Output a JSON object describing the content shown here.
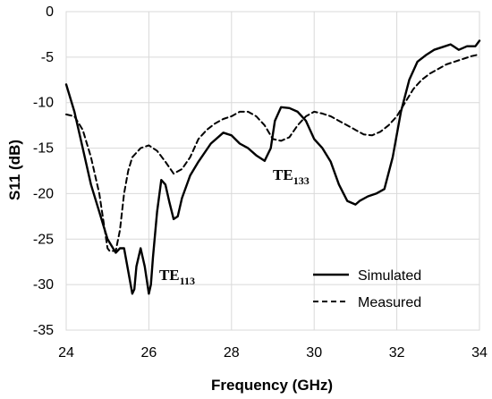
{
  "chart_data": {
    "type": "line",
    "xlabel": "Frequency (GHz)",
    "ylabel": "S11 (dB)",
    "xlim": [
      24,
      34
    ],
    "ylim": [
      -35,
      0
    ],
    "xticks": [
      24,
      26,
      28,
      30,
      32,
      34
    ],
    "yticks": [
      0,
      -5,
      -10,
      -15,
      -20,
      -25,
      -30,
      -35
    ],
    "grid": true,
    "legend_position": "bottom-right",
    "series": [
      {
        "name": "Simulated",
        "style": "solid",
        "x": [
          24.0,
          24.2,
          24.4,
          24.6,
          24.8,
          25.0,
          25.2,
          25.3,
          25.4,
          25.5,
          25.6,
          25.65,
          25.7,
          25.8,
          25.9,
          26.0,
          26.05,
          26.1,
          26.2,
          26.3,
          26.4,
          26.5,
          26.6,
          26.7,
          26.8,
          27.0,
          27.2,
          27.5,
          27.8,
          28.0,
          28.2,
          28.4,
          28.6,
          28.8,
          28.95,
          29.05,
          29.2,
          29.4,
          29.6,
          29.8,
          30.0,
          30.2,
          30.4,
          30.6,
          30.8,
          31.0,
          31.1,
          31.3,
          31.5,
          31.7,
          31.9,
          32.1,
          32.3,
          32.5,
          32.7,
          32.9,
          33.1,
          33.3,
          33.5,
          33.7,
          33.9,
          34.0
        ],
        "y": [
          -8.0,
          -11.0,
          -15.0,
          -19.0,
          -22.0,
          -25.0,
          -26.5,
          -26.0,
          -26.0,
          -28.5,
          -31.0,
          -30.5,
          -28.0,
          -26.0,
          -28.0,
          -31.0,
          -30.0,
          -27.0,
          -22.0,
          -18.5,
          -19.0,
          -21.0,
          -22.8,
          -22.5,
          -20.5,
          -18.0,
          -16.5,
          -14.5,
          -13.3,
          -13.6,
          -14.5,
          -15.0,
          -15.8,
          -16.4,
          -15.0,
          -12.0,
          -10.5,
          -10.6,
          -11.0,
          -12.0,
          -14.0,
          -15.0,
          -16.5,
          -19.0,
          -20.8,
          -21.2,
          -20.8,
          -20.3,
          -20.0,
          -19.5,
          -16.0,
          -11.0,
          -7.5,
          -5.5,
          -4.8,
          -4.2,
          -3.9,
          -3.6,
          -4.2,
          -3.8,
          -3.8,
          -3.2
        ]
      },
      {
        "name": "Measured",
        "style": "dashed",
        "x": [
          24.0,
          24.2,
          24.4,
          24.6,
          24.8,
          24.9,
          25.0,
          25.05,
          25.1,
          25.2,
          25.3,
          25.4,
          25.5,
          25.6,
          25.7,
          25.8,
          26.0,
          26.2,
          26.4,
          26.6,
          26.8,
          27.0,
          27.2,
          27.4,
          27.6,
          27.8,
          28.0,
          28.2,
          28.4,
          28.6,
          28.8,
          29.0,
          29.2,
          29.4,
          29.6,
          29.8,
          30.0,
          30.2,
          30.4,
          30.6,
          30.8,
          31.0,
          31.2,
          31.4,
          31.6,
          31.8,
          32.0,
          32.2,
          32.4,
          32.6,
          32.8,
          33.0,
          33.2,
          33.4,
          33.6,
          33.8,
          34.0
        ],
        "y": [
          -11.3,
          -11.5,
          -13.0,
          -16.0,
          -20.0,
          -23.0,
          -26.0,
          -26.3,
          -26.3,
          -26.3,
          -24.0,
          -20.0,
          -17.5,
          -16.0,
          -15.5,
          -15.0,
          -14.7,
          -15.3,
          -16.5,
          -17.8,
          -17.3,
          -16.0,
          -14.0,
          -13.0,
          -12.3,
          -11.8,
          -11.5,
          -11.0,
          -11.0,
          -11.5,
          -12.5,
          -14.0,
          -14.2,
          -13.8,
          -12.5,
          -11.5,
          -11.0,
          -11.2,
          -11.5,
          -12.0,
          -12.5,
          -13.0,
          -13.5,
          -13.6,
          -13.2,
          -12.5,
          -11.5,
          -10.0,
          -8.5,
          -7.5,
          -6.8,
          -6.3,
          -5.8,
          -5.5,
          -5.2,
          -4.9,
          -4.7
        ]
      }
    ],
    "annotations": [
      {
        "main": "TE",
        "sub": "113",
        "x": 26.25,
        "y": -29.5
      },
      {
        "main": "TE",
        "sub": "133",
        "x": 29.0,
        "y": -18.5
      }
    ]
  }
}
